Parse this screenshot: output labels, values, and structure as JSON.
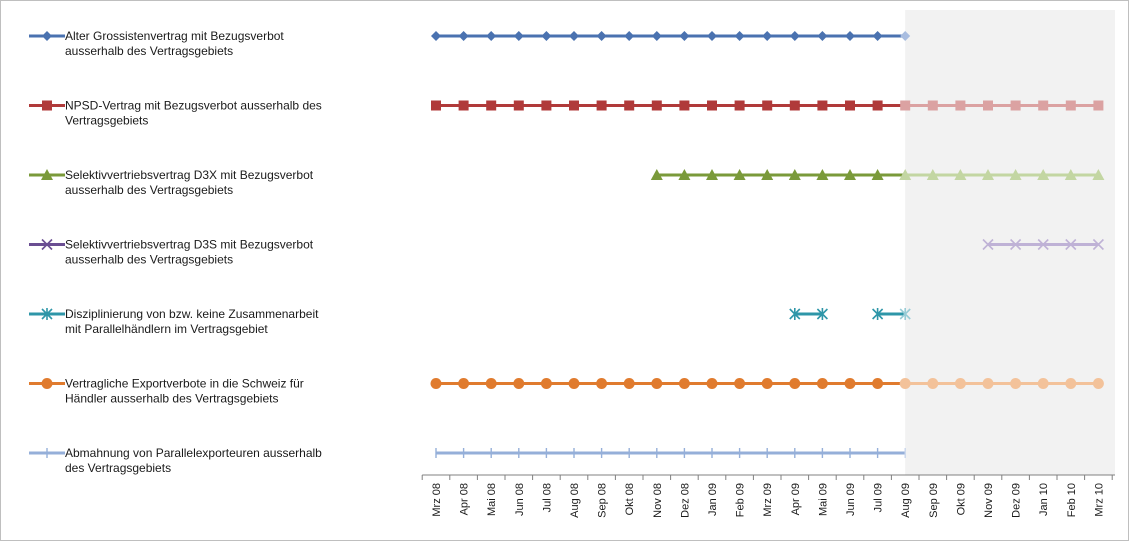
{
  "chart_data": {
    "type": "line",
    "title": "",
    "xlabel": "",
    "ylabel": "",
    "categories": [
      "Mrz 08",
      "Apr 08",
      "Mai 08",
      "Jun 08",
      "Jul 08",
      "Aug 08",
      "Sep 08",
      "Okt 08",
      "Nov 08",
      "Dez 08",
      "Jan 09",
      "Feb 09",
      "Mrz 09",
      "Apr 09",
      "Mai 09",
      "Jun 09",
      "Jul 09",
      "Aug 09",
      "Sep 09",
      "Okt 09",
      "Nov 09",
      "Dez 09",
      "Jan 10",
      "Feb 10",
      "Mrz 10"
    ],
    "shaded_region": {
      "from": "Aug 09",
      "to": "Mrz 10",
      "color": "#f2f2f2"
    },
    "legend_position": "left",
    "grid": false,
    "series": [
      {
        "name_lines": [
          "Alter Grossistenvertrag mit Bezugsverbot",
          "ausserhalb des Vertragsgebiets"
        ],
        "color": "#4a72b0",
        "light_color": "#a9bde0",
        "marker": "diamond",
        "active_from": "Mrz 08",
        "active_to": "Aug 09"
      },
      {
        "name_lines": [
          "NPSD-Vertrag mit Bezugsverbot ausserhalb des",
          "Vertragsgebiets"
        ],
        "color": "#b03a3a",
        "light_color": "#dba2a2",
        "marker": "square",
        "active_from": "Mrz 08",
        "active_to": "Mrz 10"
      },
      {
        "name_lines": [
          "Selektivvertriebsvertrag D3X mit Bezugsverbot",
          "ausserhalb des Vertragsgebiets"
        ],
        "color": "#7a9a3a",
        "light_color": "#c3d6a2",
        "marker": "triangle",
        "active_from": "Nov 08",
        "active_to": "Mrz 10"
      },
      {
        "name_lines": [
          "Selektivvertriebsvertrag D3S mit Bezugsverbot",
          "ausserhalb des Vertragsgebiets"
        ],
        "color": "#6a4e92",
        "light_color": "#bfb2d6",
        "marker": "x",
        "active_from": "Nov 09",
        "active_to": "Mrz 10"
      },
      {
        "name_lines": [
          "Disziplinierung von bzw. keine Zusammenarbeit",
          "mit Parallelhändlern  im Vertragsgebiet"
        ],
        "color": "#2e96a8",
        "light_color": "#98ccd6",
        "marker": "star",
        "segments": [
          [
            "Apr 09",
            "Mai 09"
          ],
          [
            "Jul 09",
            "Aug 09"
          ]
        ]
      },
      {
        "name_lines": [
          "Vertragliche Exportverbote in die Schweiz für",
          "Händler ausserhalb des Vertragsgebiets"
        ],
        "color": "#e07b2e",
        "light_color": "#f3c29a",
        "marker": "circle",
        "active_from": "Mrz 08",
        "active_to": "Mrz 10"
      },
      {
        "name_lines": [
          "Abmahnung von Parallelexporteuren ausserhalb",
          "des Vertragsgebiets"
        ],
        "color": "#95afd9",
        "light_color": "#c9d6ec",
        "marker": "plus",
        "active_from": "Mrz 08",
        "active_to": "Aug 09"
      }
    ]
  }
}
